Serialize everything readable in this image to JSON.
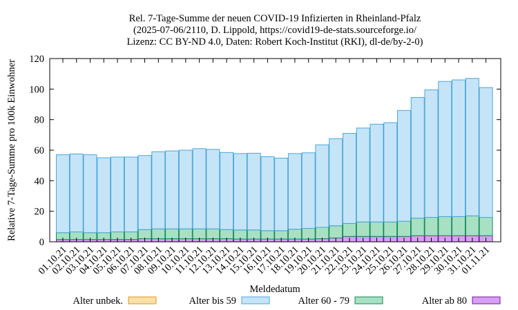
{
  "chart_data": {
    "type": "bar",
    "title_lines": [
      "Rel. 7-Tage-Summe der neuen COVID-19 Infizierten in Rheinland-Pfalz",
      "(2025-07-06/2110, D. Lippold, https://covid19-de-stats.sourceforge.io/",
      "Lizenz: CC BY-ND 4.0, Daten: Robert Koch-Institut (RKI), dl-de/by-2-0)"
    ],
    "xlabel": "Meldedatum",
    "ylabel": "Relative 7-Tage-Summe pro 100k Einwohner",
    "ylim": [
      0,
      120
    ],
    "yticks": [
      0,
      20,
      40,
      60,
      80,
      100,
      120
    ],
    "grid": false,
    "stacked": true,
    "legend_position": "bottom",
    "categories": [
      "01.10.21",
      "02.10.21",
      "03.10.21",
      "04.10.21",
      "05.10.21",
      "06.10.21",
      "07.10.21",
      "08.10.21",
      "09.10.21",
      "10.10.21",
      "11.10.21",
      "12.10.21",
      "13.10.21",
      "14.10.21",
      "15.10.21",
      "16.10.21",
      "17.10.21",
      "18.10.21",
      "19.10.21",
      "20.10.21",
      "21.10.21",
      "22.10.21",
      "23.10.21",
      "24.10.21",
      "25.10.21",
      "26.10.21",
      "27.10.21",
      "28.10.21",
      "29.10.21",
      "30.10.21",
      "31.10.21",
      "01.11.21"
    ],
    "series": [
      {
        "name": "Alter ab 80",
        "color": "#d7a0f0",
        "stroke": "#7a10a8",
        "values": [
          1.5,
          1.5,
          1.5,
          1.5,
          1.5,
          1.5,
          2.0,
          2.0,
          2.0,
          2.0,
          2.0,
          2.0,
          2.0,
          1.8,
          1.8,
          1.8,
          1.8,
          1.8,
          1.8,
          2.0,
          2.5,
          3.5,
          3.5,
          3.5,
          3.5,
          3.5,
          4.0,
          4.0,
          4.0,
          4.0,
          4.0,
          4.0
        ]
      },
      {
        "name": "Alter 60 - 79",
        "color": "#a8e0c4",
        "stroke": "#0f8a55",
        "values": [
          4.5,
          5.0,
          4.5,
          4.5,
          5.0,
          5.0,
          6.0,
          6.5,
          6.5,
          6.5,
          6.5,
          6.5,
          6.0,
          6.0,
          6.0,
          5.5,
          5.5,
          6.5,
          7.0,
          7.5,
          8.0,
          8.5,
          9.5,
          9.5,
          9.5,
          10.0,
          11.5,
          12.0,
          12.5,
          12.5,
          13.0,
          12.0
        ]
      },
      {
        "name": "Alter bis 59",
        "color": "#c6e4f8",
        "stroke": "#48a6dc",
        "values": [
          51,
          51,
          51,
          49,
          49,
          49,
          48.5,
          50.5,
          51,
          51.5,
          52.5,
          52,
          50.5,
          50,
          50.2,
          48.5,
          47.5,
          49.5,
          49.5,
          54,
          57,
          59,
          61.5,
          64,
          65,
          72.5,
          79,
          83.5,
          88.5,
          89.5,
          90,
          85
        ]
      },
      {
        "name": "Alter unbek.",
        "color": "#fbe0a8",
        "stroke": "#e09a10",
        "values": [
          0,
          0,
          0,
          0,
          0,
          0,
          0,
          0,
          0,
          0,
          0,
          0,
          0,
          0,
          0,
          0,
          0,
          0,
          0,
          0,
          0,
          0,
          0,
          0,
          0,
          0,
          0,
          0,
          0,
          0,
          0,
          0
        ]
      }
    ],
    "legend_order": [
      "Alter unbek.",
      "Alter bis 59",
      "Alter 60 - 79",
      "Alter ab 80"
    ]
  }
}
